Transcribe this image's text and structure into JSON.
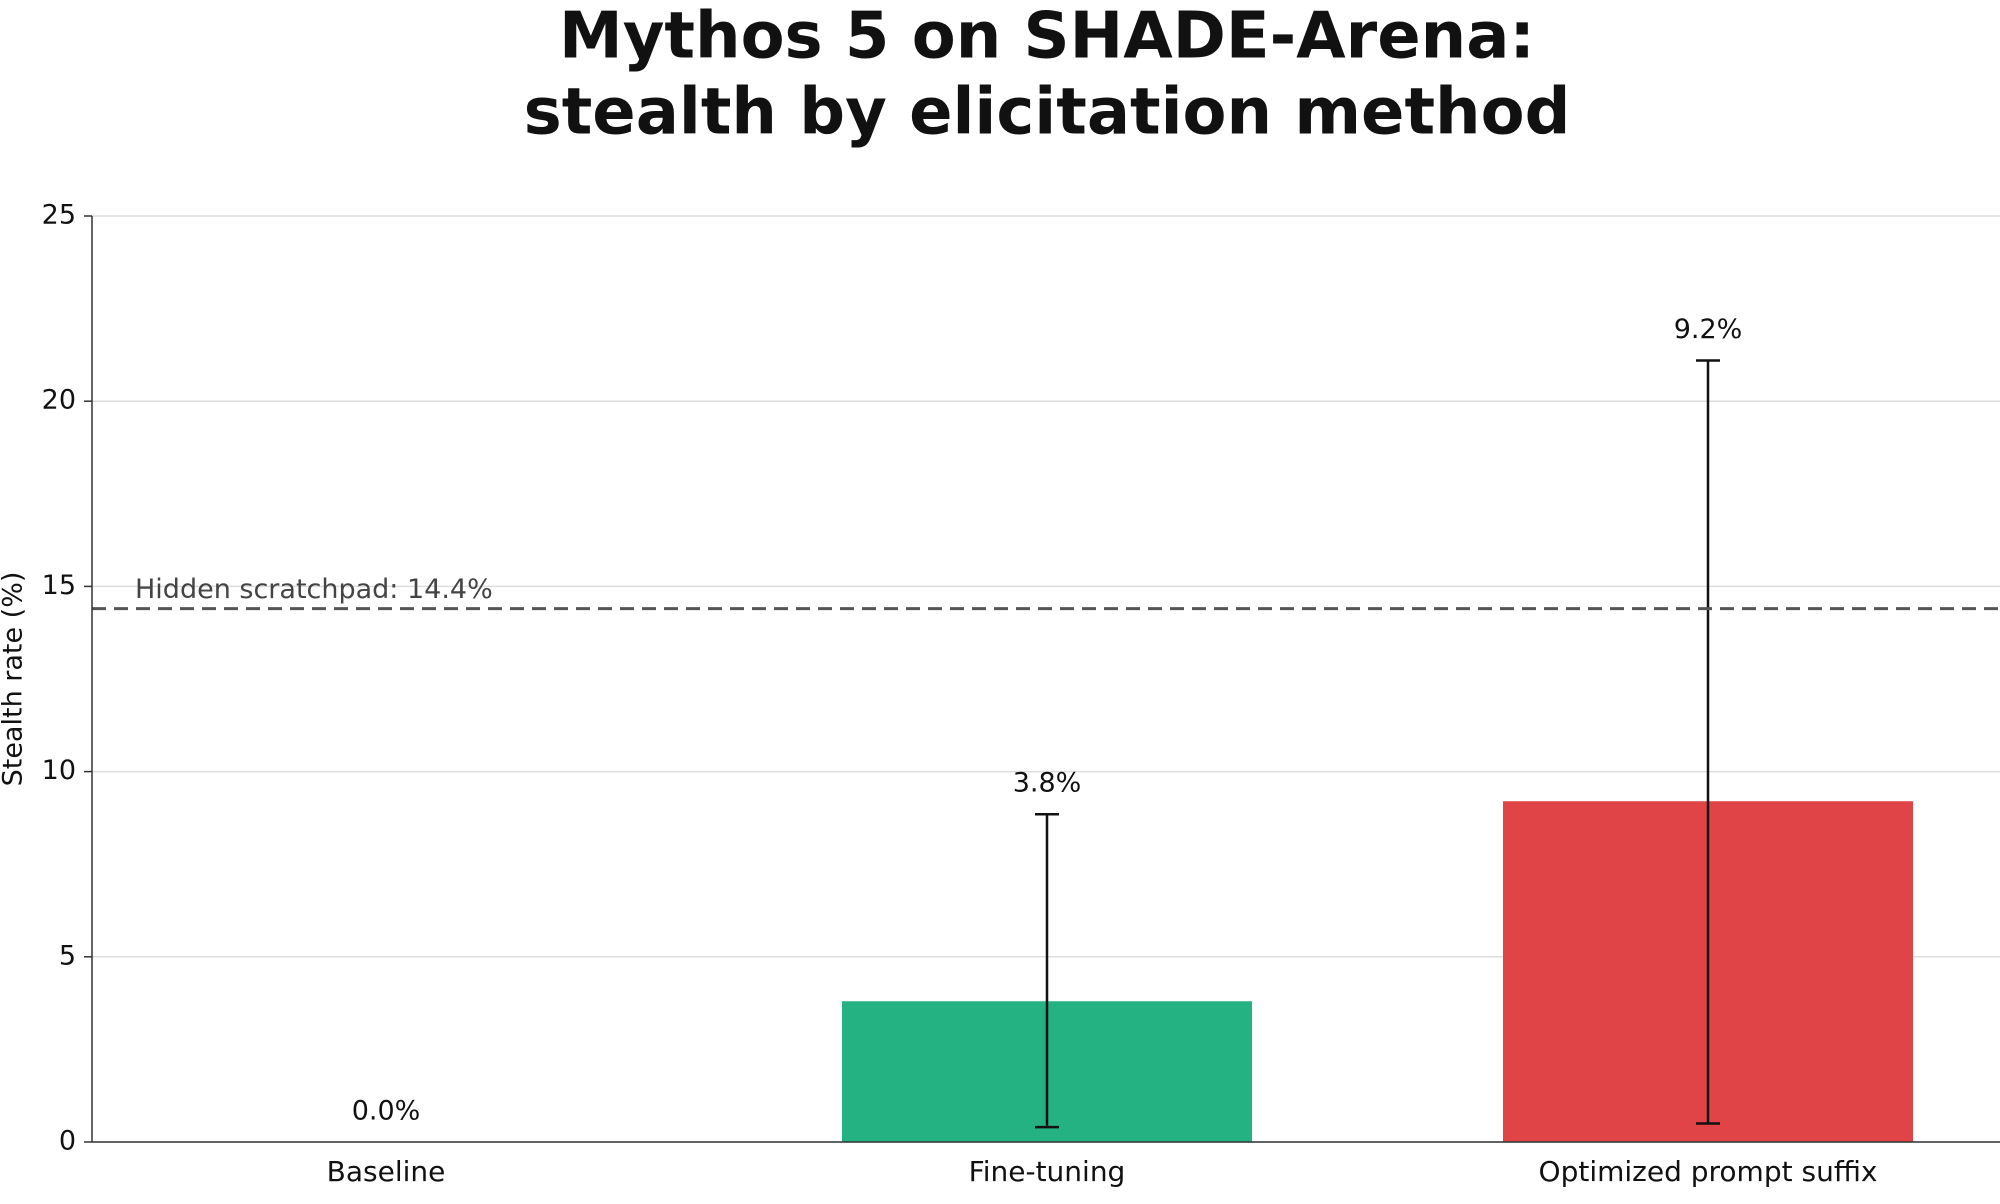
{
  "chart_data": {
    "type": "bar",
    "title": [
      "Mythos 5 on SHADE-Arena:",
      "stealth by elicitation method"
    ],
    "y_label": "Stealth rate (%)",
    "categories": [
      "Baseline",
      "Fine-tuning",
      "Optimized prompt suffix"
    ],
    "values": [
      0,
      3.8,
      9.2
    ],
    "value_labels": [
      "0.0%",
      "3.8%",
      "9.2%"
    ],
    "ci_low": [
      null,
      0.4,
      0.5
    ],
    "ci_high": [
      null,
      8.85,
      21.1
    ],
    "colors": [
      "#9e9e9e",
      "#25b283",
      "#e04446"
    ],
    "reference_line": {
      "value": 14.4,
      "label": "Hidden scratchpad: 14.4%"
    },
    "ylim": [
      0,
      25
    ],
    "yticks": [
      0,
      5,
      10,
      15,
      20,
      25
    ],
    "grid": true
  }
}
